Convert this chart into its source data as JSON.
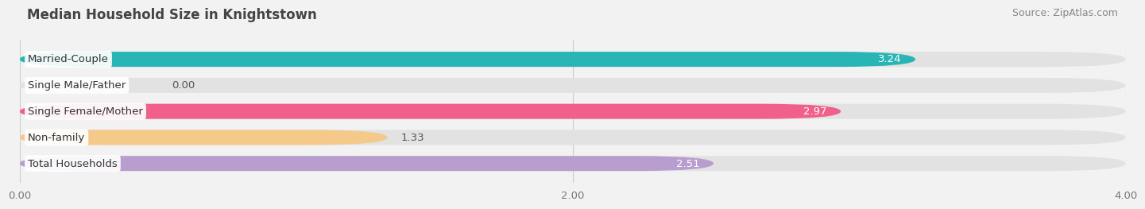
{
  "title": "Median Household Size in Knightstown",
  "source": "Source: ZipAtlas.com",
  "categories": [
    "Married-Couple",
    "Single Male/Father",
    "Single Female/Mother",
    "Non-family",
    "Total Households"
  ],
  "values": [
    3.24,
    0.0,
    2.97,
    1.33,
    2.51
  ],
  "colors": [
    "#29b5b5",
    "#a8bce0",
    "#f0608a",
    "#f5c98a",
    "#b89ece"
  ],
  "xlim": [
    0,
    4.0
  ],
  "xticks": [
    0.0,
    2.0,
    4.0
  ],
  "xtick_labels": [
    "0.00",
    "2.00",
    "4.00"
  ],
  "bar_height": 0.58,
  "bar_gap": 0.42,
  "label_fontsize": 9.5,
  "value_fontsize": 9.5,
  "title_fontsize": 12,
  "source_fontsize": 9,
  "background_color": "#f2f2f2",
  "bar_background_color": "#e2e2e2",
  "value_inside_threshold": 2.5
}
